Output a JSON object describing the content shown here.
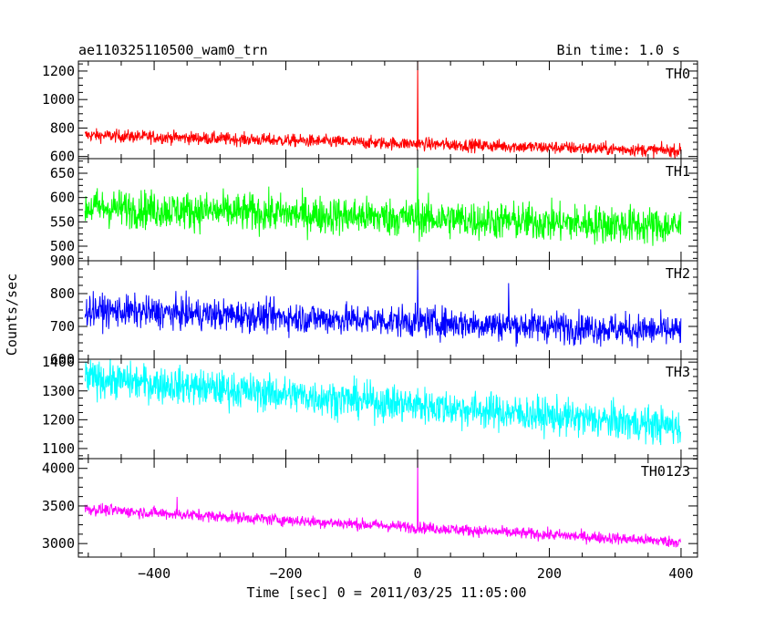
{
  "header": {
    "title": "ae110325110500_wam0_trn",
    "bin_time": "Bin time: 1.0 s"
  },
  "chart_data": {
    "type": "line",
    "xlabel": "Time [sec] 0 = 2011/03/25 11:05:00",
    "ylabel": "Counts/sec",
    "xlim": [
      -515,
      425
    ],
    "x_ticks": [
      -400,
      -200,
      0,
      200,
      400
    ],
    "x_tick_labels": [
      "−400",
      "−200",
      "0",
      "200",
      "400"
    ],
    "x_range": [
      -505,
      400
    ],
    "grid": false,
    "panels": [
      {
        "name": "TH0",
        "color": "#ff0000",
        "ylim": [
          585,
          1270
        ],
        "y_ticks": [
          600,
          800,
          1000,
          1200
        ],
        "y_tick_labels": [
          "600",
          "800",
          "1000",
          "1200"
        ],
        "start_mean": 750,
        "end_mean": 640,
        "noise": 32,
        "spike": {
          "x": 0,
          "y": 1270
        },
        "bumps": []
      },
      {
        "name": "TH1",
        "color": "#00ff00",
        "ylim": [
          470,
          680
        ],
        "y_ticks": [
          500,
          550,
          600,
          650
        ],
        "y_tick_labels": [
          "500",
          "550",
          "600",
          "650"
        ],
        "start_mean": 580,
        "end_mean": 540,
        "noise": 28,
        "spike": {
          "x": 0,
          "y": 678
        },
        "bumps": []
      },
      {
        "name": "TH2",
        "color": "#0000ff",
        "ylim": [
          600,
          900
        ],
        "y_ticks": [
          600,
          700,
          800,
          900
        ],
        "y_tick_labels": [
          "600",
          "700",
          "800",
          "900"
        ],
        "start_mean": 750,
        "end_mean": 685,
        "noise": 34,
        "spike": {
          "x": 0,
          "y": 900
        },
        "bumps": [
          {
            "x": 138,
            "y": 832
          }
        ]
      },
      {
        "name": "TH3",
        "color": "#00ffff",
        "ylim": [
          1065,
          1410
        ],
        "y_ticks": [
          1100,
          1200,
          1300,
          1400
        ],
        "y_tick_labels": [
          "1100",
          "1200",
          "1300",
          "1400"
        ],
        "start_mean": 1345,
        "end_mean": 1175,
        "noise": 45,
        "spike": {
          "x": 0,
          "y": 1310
        },
        "bumps": []
      },
      {
        "name": "TH0123",
        "color": "#ff00ff",
        "ylim": [
          2820,
          4130
        ],
        "y_ticks": [
          3000,
          3500,
          4000
        ],
        "y_tick_labels": [
          "3000",
          "3500",
          "4000"
        ],
        "start_mean": 3460,
        "end_mean": 3020,
        "noise": 55,
        "spike": {
          "x": 0,
          "y": 4130
        },
        "bumps": [
          {
            "x": -365,
            "y": 3620
          }
        ]
      }
    ]
  }
}
